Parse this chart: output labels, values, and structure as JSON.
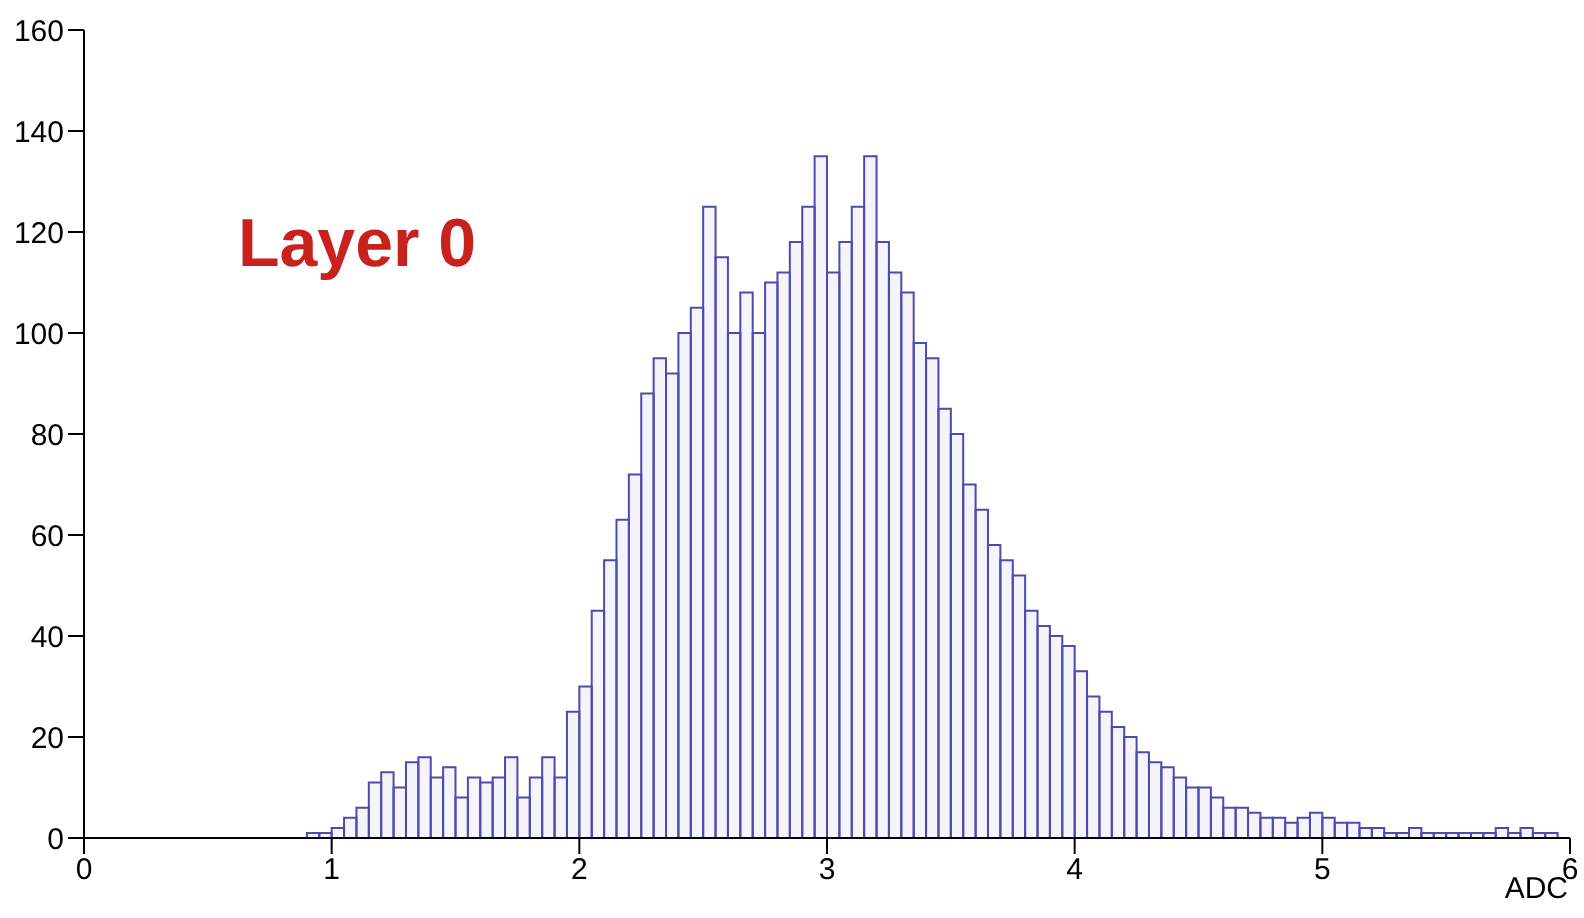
{
  "chart_data": {
    "type": "histogram",
    "xlabel": "ADC",
    "annotations": [
      "Layer 0"
    ],
    "bins": [
      0,
      0.05,
      0.1,
      0.15,
      0.2,
      0.25,
      0.3,
      0.35,
      0.4,
      0.45,
      0.5,
      0.55,
      0.6,
      0.65,
      0.7,
      0.75,
      0.8,
      0.85,
      0.9,
      0.95,
      1,
      1.05,
      1.1,
      1.15,
      1.2,
      1.25,
      1.3,
      1.35,
      1.4,
      1.45,
      1.5,
      1.55,
      1.6,
      1.65,
      1.7,
      1.75,
      1.8,
      1.85,
      1.9,
      1.95,
      2,
      2.05,
      2.1,
      2.15,
      2.2,
      2.25,
      2.3,
      2.35,
      2.4,
      2.45,
      2.5,
      2.55,
      2.6,
      2.65,
      2.7,
      2.75,
      2.8,
      2.85,
      2.9,
      2.95,
      3,
      3.05,
      3.1,
      3.15,
      3.2,
      3.25,
      3.3,
      3.35,
      3.4,
      3.45,
      3.5,
      3.55,
      3.6,
      3.65,
      3.7,
      3.75,
      3.8,
      3.85,
      3.9,
      3.95,
      4,
      4.05,
      4.1,
      4.15,
      4.2,
      4.25,
      4.3,
      4.35,
      4.4,
      4.45,
      4.5,
      4.55,
      4.6,
      4.65,
      4.7,
      4.75,
      4.8,
      4.85,
      4.9,
      4.95,
      5,
      5.05,
      5.1,
      5.15,
      5.2,
      5.25,
      5.3,
      5.35,
      5.4,
      5.45,
      5.5,
      5.55,
      5.6,
      5.65,
      5.7,
      5.75,
      5.8,
      5.85,
      5.9,
      5.95,
      6
    ],
    "values": [
      0,
      0,
      0,
      0,
      0,
      0,
      0,
      0,
      0,
      0,
      0,
      0,
      0,
      0,
      0,
      0,
      0,
      0,
      1,
      1,
      2,
      4,
      6,
      11,
      13,
      10,
      15,
      16,
      12,
      14,
      8,
      12,
      11,
      12,
      16,
      8,
      12,
      16,
      12,
      25,
      30,
      45,
      55,
      63,
      72,
      88,
      95,
      92,
      100,
      105,
      125,
      115,
      100,
      108,
      100,
      110,
      112,
      118,
      125,
      135,
      112,
      118,
      125,
      135,
      118,
      112,
      108,
      98,
      95,
      85,
      80,
      70,
      65,
      58,
      55,
      52,
      45,
      42,
      40,
      38,
      33,
      28,
      25,
      22,
      20,
      17,
      15,
      14,
      12,
      10,
      10,
      8,
      6,
      6,
      5,
      4,
      4,
      3,
      4,
      5,
      4,
      3,
      3,
      2,
      2,
      1,
      1,
      2,
      1,
      1,
      1,
      1,
      1,
      1,
      2,
      1,
      2,
      1,
      1,
      0
    ],
    "color": "#4b4bb0",
    "xlim": [
      0,
      6
    ],
    "xticks": [
      0,
      1,
      2,
      3,
      4,
      5,
      6
    ],
    "ylim": [
      0,
      160
    ],
    "yticks": [
      0,
      20,
      40,
      60,
      80,
      100,
      120,
      140,
      160
    ],
    "grid": false
  }
}
